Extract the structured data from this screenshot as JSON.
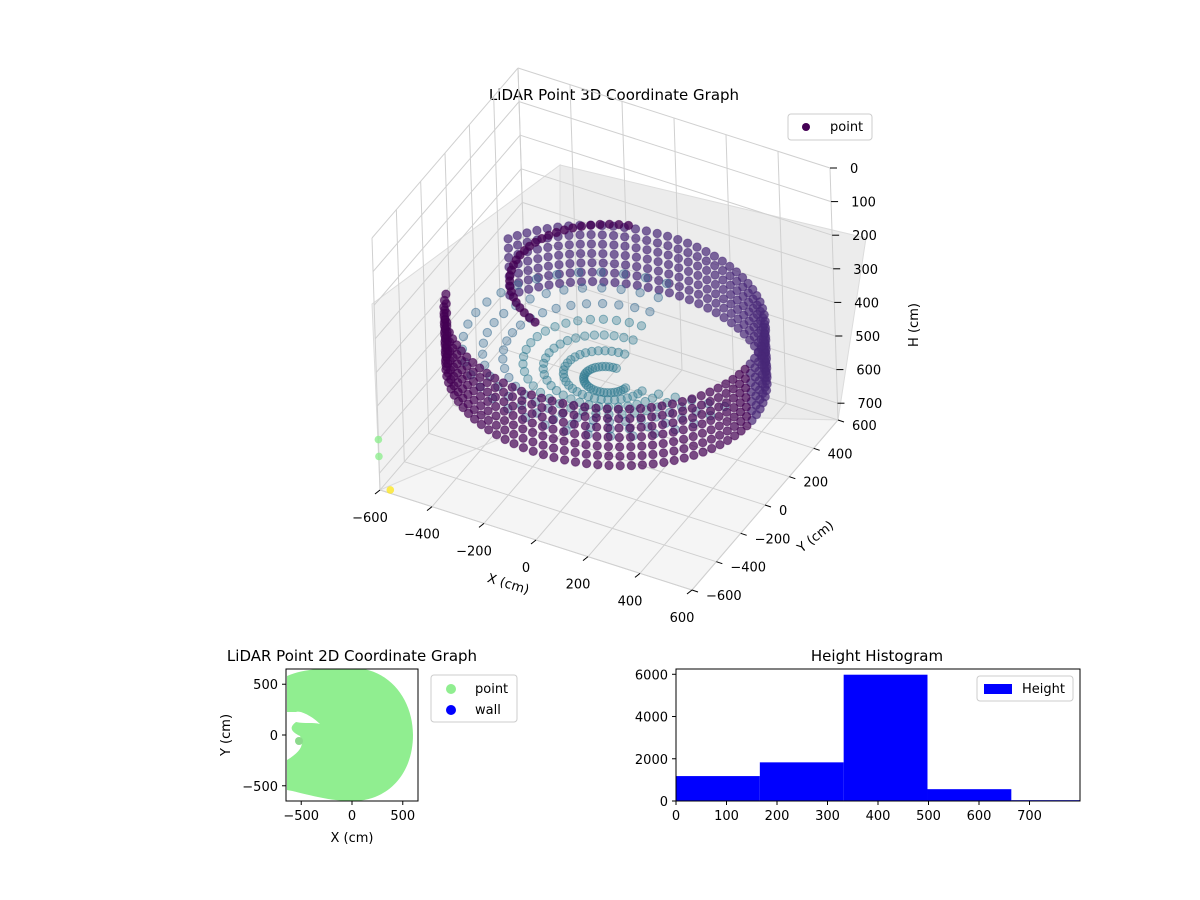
{
  "chart_data": [
    {
      "type": "scatter",
      "projection": "3d",
      "title": "LiDAR Point 3D Coordinate Graph",
      "xlabel": "X (cm)",
      "ylabel": "Y (cm)",
      "zlabel": "H (cm)",
      "x_ticks": [
        "−600",
        "−400",
        "−200",
        "0",
        "200",
        "400",
        "600"
      ],
      "y_ticks": [
        "−600",
        "−400",
        "−200",
        "0",
        "200",
        "400",
        "600"
      ],
      "z_ticks": [
        "0",
        "100",
        "200",
        "300",
        "400",
        "500",
        "600",
        "700"
      ],
      "xlim": [
        -600,
        600
      ],
      "ylim": [
        -600,
        600
      ],
      "zlim": [
        0,
        750
      ],
      "z_inverted": true,
      "colormap": "viridis",
      "legend": {
        "entries": [
          "point"
        ],
        "placement": "top-right"
      },
      "description_of_data": "ring-shaped wall of points, radius ~550 cm, heights ~300-550 cm",
      "ring": {
        "radius": 560,
        "h_top": 340,
        "h_bottom": 520
      },
      "outliers": [
        {
          "x": -600,
          "y": -600,
          "h": 600,
          "color": "#90ee90"
        },
        {
          "x": -600,
          "y": -600,
          "h": 650,
          "color": "#90ee90"
        },
        {
          "x": -560,
          "y": -600,
          "h": 740,
          "color": "#fde725"
        }
      ],
      "grid": true
    },
    {
      "type": "scatter",
      "title": "LiDAR Point 2D Coordinate Graph",
      "xlabel": "X (cm)",
      "ylabel": "Y (cm)",
      "x_ticks": [
        "−500",
        "0",
        "500"
      ],
      "y_ticks": [
        "500",
        "0",
        "−500"
      ],
      "xlim": [
        -650,
        650
      ],
      "ylim": [
        -650,
        650
      ],
      "series": [
        {
          "name": "point",
          "color": "#90ee90",
          "shape": "disk of radius ~580 cm with a notch at left"
        },
        {
          "name": "wall",
          "color": "#0000ff"
        }
      ],
      "legend": {
        "entries": [
          "point",
          "wall"
        ],
        "placement": "outside-right"
      }
    },
    {
      "type": "bar",
      "title": "Height Histogram",
      "x_ticks": [
        "0",
        "100",
        "200",
        "300",
        "400",
        "500",
        "600",
        "700"
      ],
      "y_ticks": [
        "0",
        "2000",
        "4000",
        "6000"
      ],
      "xlim": [
        0,
        800
      ],
      "ylim": [
        0,
        6250
      ],
      "bins": [
        {
          "from": 0,
          "to": 166,
          "count": 1180
        },
        {
          "from": 166,
          "to": 332,
          "count": 1830
        },
        {
          "from": 332,
          "to": 498,
          "count": 5980
        },
        {
          "from": 498,
          "to": 664,
          "count": 560
        },
        {
          "from": 664,
          "to": 800,
          "count": 40
        }
      ],
      "series": [
        {
          "name": "Height",
          "color": "#0000ff"
        }
      ],
      "legend": {
        "entries": [
          "Height"
        ],
        "placement": "top-right"
      }
    }
  ]
}
